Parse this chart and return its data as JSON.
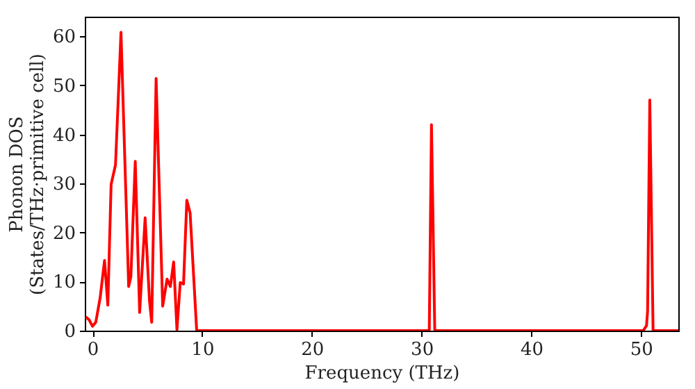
{
  "chart_data": {
    "type": "line",
    "xlabel": "Frequency (THz)",
    "ylabel": "Phonon DOS\n(States/THz·primitive cell)",
    "xlim": [
      -0.7,
      53.4
    ],
    "xticks": [
      0,
      10,
      20,
      30,
      40,
      50
    ],
    "ylim": [
      0,
      64
    ],
    "yticks": [
      0,
      10,
      20,
      30,
      40,
      50,
      60
    ],
    "grid": false,
    "marker": "none",
    "line_style": "solid",
    "series": [
      {
        "color": "#ff0000",
        "x": [
          -0.6,
          -0.3,
          0,
          0.3,
          0.7,
          1.1,
          1.4,
          1.7,
          2.1,
          2.6,
          3.3,
          3.5,
          3.9,
          4.3,
          4.8,
          5.2,
          5.4,
          5.8,
          6.4,
          6.8,
          7.1,
          7.4,
          7.7,
          8.0,
          8.3,
          8.6,
          8.9,
          9.5,
          30.7,
          30.9,
          31.2,
          50.2,
          50.5,
          50.6,
          50.8,
          51.1,
          53.4
        ],
        "values": [
          2.8,
          2.2,
          0.9,
          1.7,
          6.7,
          14.3,
          5.2,
          29.8,
          33.8,
          60.8,
          9,
          11,
          34.5,
          3.7,
          23,
          6,
          1.7,
          51.4,
          5,
          10.5,
          9,
          14,
          0.2,
          9.8,
          9.5,
          26.6,
          24,
          0,
          0,
          42,
          0,
          0,
          1,
          4,
          47,
          0,
          0
        ]
      }
    ]
  }
}
